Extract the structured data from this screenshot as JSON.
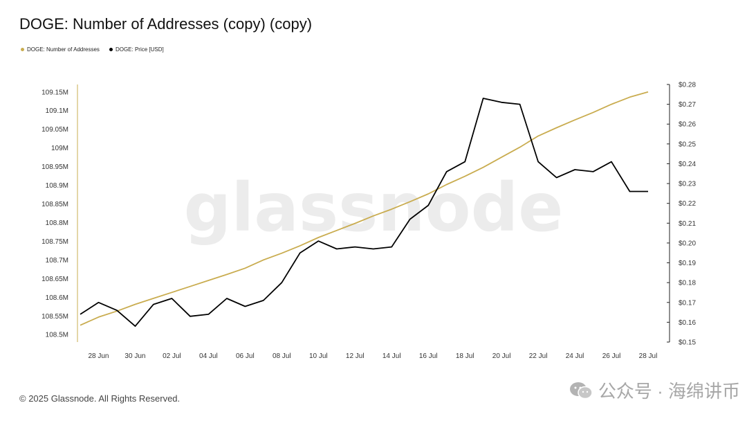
{
  "title": "DOGE: Number of Addresses (copy) (copy)",
  "footer": "© 2025 Glassnode. All Rights Reserved.",
  "watermark_center": "glassnode",
  "watermark_bottom": "公众号 · 海绵讲币",
  "colors": {
    "addresses": "#c9ac4f",
    "price": "#000000",
    "axis": "#c9ac4f"
  },
  "chart_data": {
    "type": "line",
    "title": "DOGE: Number of Addresses (copy) (copy)",
    "legend": [
      "DOGE: Number of Addresses",
      "DOGE: Price [USD]"
    ],
    "legend_position": "top-left",
    "grid": false,
    "x": [
      "27 Jun",
      "28 Jun",
      "29 Jun",
      "30 Jun",
      "01 Jul",
      "02 Jul",
      "03 Jul",
      "04 Jul",
      "05 Jul",
      "06 Jul",
      "07 Jul",
      "08 Jul",
      "09 Jul",
      "10 Jul",
      "11 Jul",
      "12 Jul",
      "13 Jul",
      "14 Jul",
      "15 Jul",
      "16 Jul",
      "17 Jul",
      "18 Jul",
      "19 Jul",
      "20 Jul",
      "21 Jul",
      "22 Jul",
      "23 Jul",
      "24 Jul",
      "25 Jul",
      "26 Jul",
      "27 Jul",
      "28 Jul"
    ],
    "x_ticks": [
      "28 Jun",
      "30 Jun",
      "02 Jul",
      "04 Jul",
      "06 Jul",
      "08 Jul",
      "10 Jul",
      "12 Jul",
      "14 Jul",
      "16 Jul",
      "18 Jul",
      "20 Jul",
      "22 Jul",
      "24 Jul",
      "26 Jul",
      "28 Jul"
    ],
    "y_left": {
      "label": "",
      "ylim": [
        108.48,
        109.17
      ],
      "ticks": [
        "108.5M",
        "108.55M",
        "108.6M",
        "108.65M",
        "108.7M",
        "108.75M",
        "108.8M",
        "108.85M",
        "108.9M",
        "108.95M",
        "109M",
        "109.05M",
        "109.1M",
        "109.15M"
      ]
    },
    "y_right": {
      "label": "",
      "ylim": [
        0.15,
        0.28
      ],
      "ticks": [
        "$0.15",
        "$0.16",
        "$0.17",
        "$0.18",
        "$0.19",
        "$0.20",
        "$0.21",
        "$0.22",
        "$0.23",
        "$0.24",
        "$0.25",
        "$0.26",
        "$0.27",
        "$0.28"
      ]
    },
    "series": [
      {
        "name": "DOGE: Number of Addresses",
        "axis": "left",
        "values": [
          108.525,
          108.547,
          108.563,
          108.581,
          108.597,
          108.613,
          108.629,
          108.645,
          108.661,
          108.678,
          108.7,
          108.718,
          108.738,
          108.76,
          108.779,
          108.798,
          108.818,
          108.836,
          108.856,
          108.877,
          108.902,
          108.924,
          108.948,
          108.975,
          109.002,
          109.032,
          109.054,
          109.075,
          109.095,
          109.117,
          109.136,
          109.15
        ]
      },
      {
        "name": "DOGE: Price [USD]",
        "axis": "right",
        "values": [
          0.164,
          0.17,
          0.166,
          0.158,
          0.169,
          0.172,
          0.163,
          0.164,
          0.172,
          0.168,
          0.171,
          0.18,
          0.195,
          0.201,
          0.197,
          0.198,
          0.197,
          0.198,
          0.212,
          0.219,
          0.236,
          0.241,
          0.273,
          0.271,
          0.27,
          0.241,
          0.233,
          0.237,
          0.236,
          0.241,
          0.226,
          0.226
        ]
      }
    ]
  }
}
